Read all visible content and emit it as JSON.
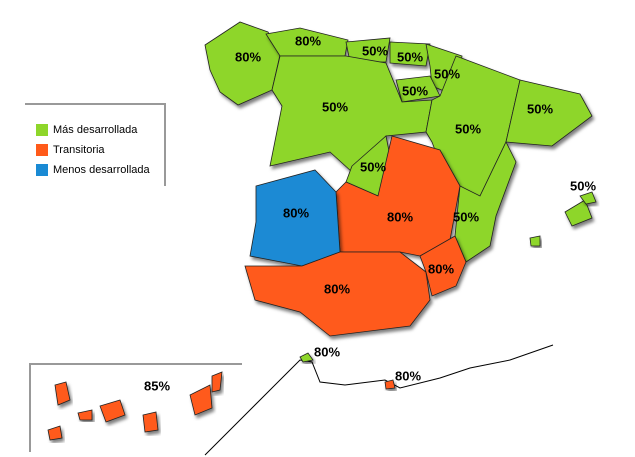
{
  "legend": [
    {
      "label": "Más desarrollada",
      "color": "#8ed62a"
    },
    {
      "label": "Transitoria",
      "color": "#ff5a1a"
    },
    {
      "label": "Menos desarrollada",
      "color": "#1a8ad4"
    }
  ],
  "regions": [
    {
      "label": "80%",
      "color": "#8ed62a"
    },
    {
      "label": "80%",
      "color": "#8ed62a"
    },
    {
      "label": "50%",
      "color": "#8ed62a"
    },
    {
      "label": "50%",
      "color": "#8ed62a"
    },
    {
      "label": "50%",
      "color": "#8ed62a"
    },
    {
      "label": "50%",
      "color": "#8ed62a"
    },
    {
      "label": "50%",
      "color": "#8ed62a"
    },
    {
      "label": "50%",
      "color": "#8ed62a"
    },
    {
      "label": "50%",
      "color": "#8ed62a"
    },
    {
      "label": "50%",
      "color": "#8ed62a"
    },
    {
      "label": "80%",
      "color": "#ff5a1a"
    },
    {
      "label": "50%",
      "color": "#8ed62a"
    },
    {
      "label": "80%",
      "color": "#1a8ad4"
    },
    {
      "label": "80%",
      "color": "#ff5a1a"
    },
    {
      "label": "80%",
      "color": "#ff5a1a"
    },
    {
      "label": "50%",
      "color": "#8ed62a"
    },
    {
      "label": "85%",
      "color": "#ff5a1a"
    },
    {
      "label": "80%",
      "color": "#8ed62a"
    },
    {
      "label": "80%",
      "color": "#ff5a1a"
    }
  ]
}
